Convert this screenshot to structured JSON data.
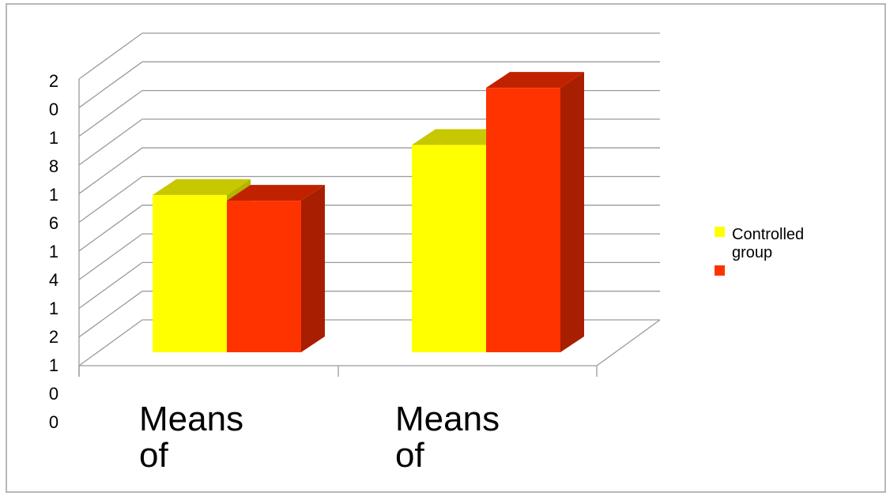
{
  "chart_data": {
    "type": "bar",
    "style": "3d-clustered-column",
    "categories": [
      "Means of",
      "Means of"
    ],
    "series": [
      {
        "name": "Controlled group",
        "color": "#FFFF00",
        "top_color": "#C8C800",
        "side_color": "#B4B400",
        "values": [
          11,
          14.5
        ]
      },
      {
        "name": "",
        "color": "#FF3300",
        "top_color": "#C02200",
        "side_color": "#A81E00",
        "values": [
          10.6,
          18.5
        ]
      }
    ],
    "y_ticks": [
      "2\n0",
      "1\n8",
      "1\n6",
      "1\n4",
      "1\n2",
      "1\n0",
      "0"
    ],
    "ylim": [
      0,
      20
    ],
    "grid": true,
    "legend_position": "right"
  }
}
